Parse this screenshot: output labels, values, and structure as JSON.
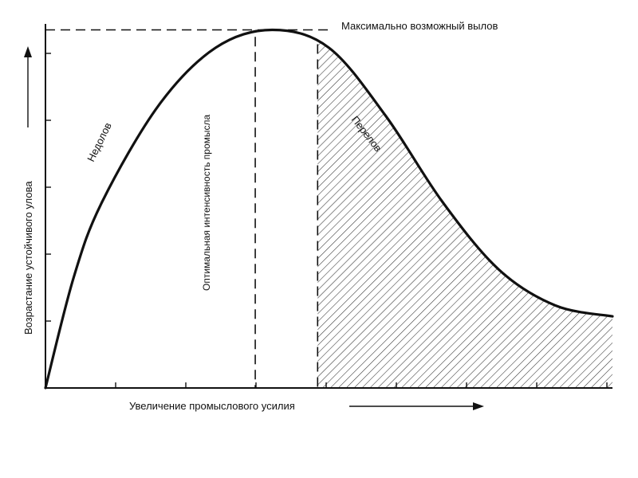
{
  "chart_data": {
    "type": "line",
    "title": "",
    "xlabel": "Увеличение промыслового усилия",
    "ylabel": "Возрастание устойчивого улова",
    "x": [
      0,
      0.5,
      1,
      2,
      3,
      4,
      5,
      6,
      7,
      8,
      9,
      10
    ],
    "y": [
      0,
      3.1,
      5.2,
      7.9,
      9.5,
      10,
      9.5,
      7.6,
      5.2,
      3.3,
      2.3,
      2.0
    ],
    "xlim": [
      0,
      10
    ],
    "ylim": [
      0,
      10.5
    ],
    "grid": false,
    "annotations": {
      "max_line": "Максимально возможный вылов",
      "optimal_line": "Оптимальная интенсивность промысла",
      "underfishing": "Недолов",
      "overfishing": "Перелов"
    },
    "optimal_x": 3.7,
    "overfishing_start_x": 4.8,
    "max_y": 10
  },
  "colors": {
    "ink": "#111111",
    "hatch": "#333333",
    "background": "#ffffff"
  }
}
